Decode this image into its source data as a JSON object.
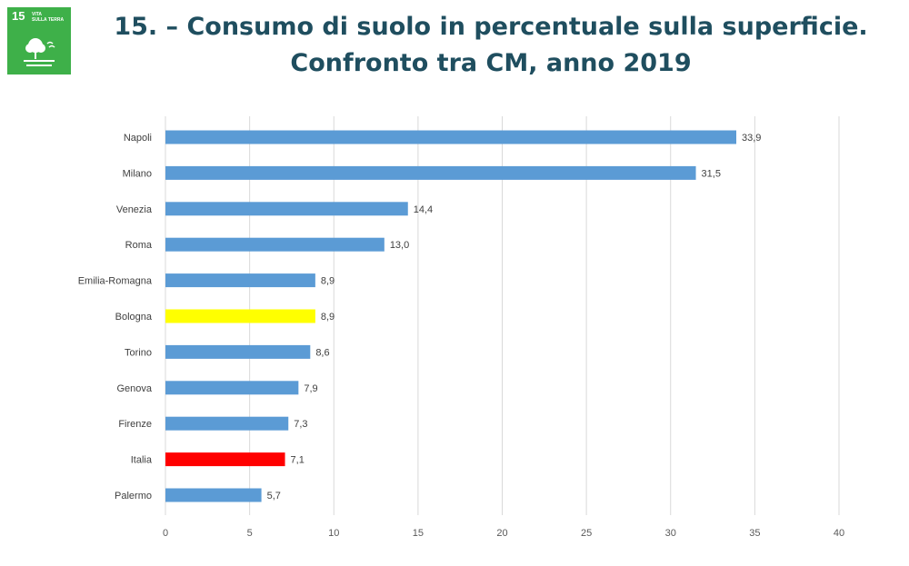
{
  "logo": {
    "number": "15",
    "text_line1": "VITA",
    "text_line2": "SULLA TERRA",
    "background": "#3eb049",
    "icon": "tree-and-ground-icon"
  },
  "title": {
    "line1": "15. – Consumo di suolo in percentuale sulla superficie.",
    "line2": "Confronto tra CM, anno 2019"
  },
  "colors": {
    "bar_default": "#5b9bd5",
    "bar_bologna": "#ffff00",
    "bar_italia": "#ff0000",
    "grid": "#d9d9d9",
    "title": "#1f4e5f"
  },
  "chart_data": {
    "type": "bar",
    "orientation": "horizontal",
    "categories": [
      "Napoli",
      "Milano",
      "Venezia",
      "Roma",
      "Emilia-Romagna",
      "Bologna",
      "Torino",
      "Genova",
      "Firenze",
      "Italia",
      "Palermo"
    ],
    "values": [
      33.9,
      31.5,
      14.4,
      13.0,
      8.9,
      8.9,
      8.6,
      7.9,
      7.3,
      7.1,
      5.7
    ],
    "value_labels": [
      "33,9",
      "31,5",
      "14,4",
      "13,0",
      "8,9",
      "8,9",
      "8,6",
      "7,9",
      "7,3",
      "7,1",
      "5,7"
    ],
    "bar_colors": [
      "#5b9bd5",
      "#5b9bd5",
      "#5b9bd5",
      "#5b9bd5",
      "#5b9bd5",
      "#ffff00",
      "#5b9bd5",
      "#5b9bd5",
      "#5b9bd5",
      "#ff0000",
      "#5b9bd5"
    ],
    "xlim": [
      0,
      40
    ],
    "xticks": [
      0,
      5,
      10,
      15,
      20,
      25,
      30,
      35,
      40
    ],
    "grid": "vertical",
    "legend": "none",
    "xlabel": "",
    "ylabel": ""
  }
}
